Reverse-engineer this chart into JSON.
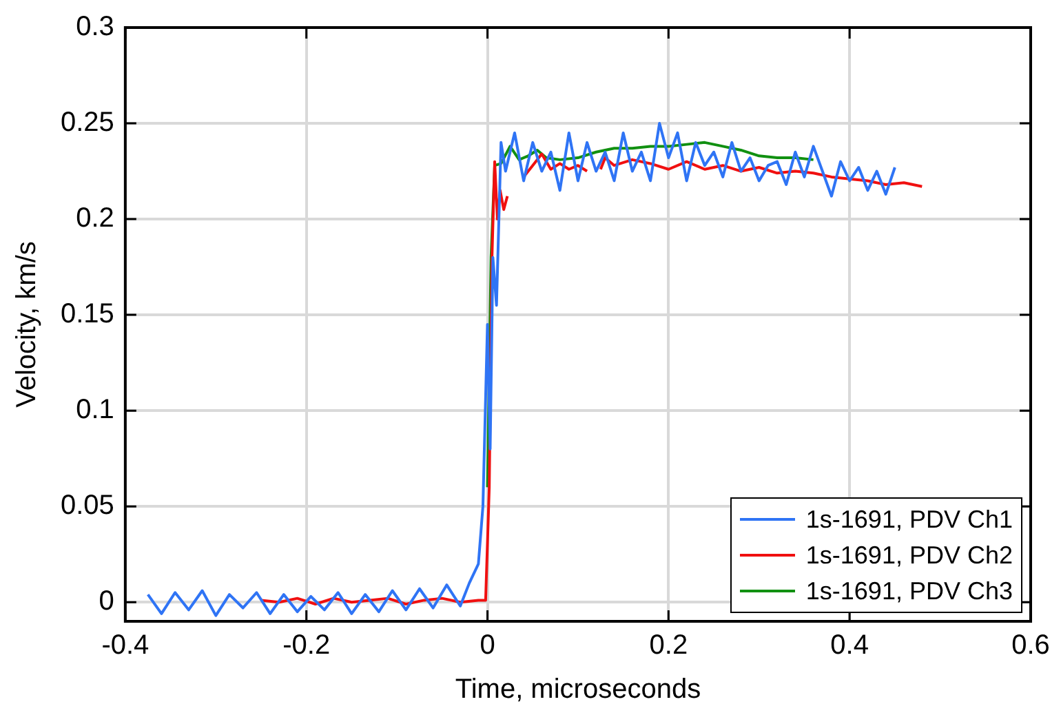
{
  "chart_data": {
    "type": "line",
    "xlabel": "Time, microseconds",
    "ylabel": "Velocity, km/s",
    "xlim": [
      -0.4,
      0.6
    ],
    "xticks": [
      -0.4,
      -0.2,
      0,
      0.2,
      0.4,
      0.6
    ],
    "ylim": [
      -0.01,
      0.3
    ],
    "yticks": [
      0,
      0.05,
      0.1,
      0.15,
      0.2,
      0.25,
      0.3
    ],
    "grid": true,
    "legend": "bottom right",
    "marker": "none",
    "line_style": "solid",
    "series": [
      {
        "name": "1s-1691, PDV Ch1",
        "color": "#2f74f5",
        "x": [
          -0.375,
          -0.36,
          -0.345,
          -0.33,
          -0.315,
          -0.3,
          -0.285,
          -0.27,
          -0.255,
          -0.24,
          -0.225,
          -0.21,
          -0.195,
          -0.18,
          -0.165,
          -0.15,
          -0.135,
          -0.12,
          -0.105,
          -0.09,
          -0.075,
          -0.06,
          -0.045,
          -0.03,
          -0.02,
          -0.01,
          -0.005,
          0,
          0.003,
          0.006,
          0.01,
          0.015,
          0.02,
          0.03,
          0.04,
          0.05,
          0.06,
          0.07,
          0.08,
          0.09,
          0.1,
          0.11,
          0.12,
          0.13,
          0.14,
          0.15,
          0.16,
          0.17,
          0.18,
          0.19,
          0.2,
          0.21,
          0.22,
          0.23,
          0.24,
          0.25,
          0.26,
          0.27,
          0.28,
          0.29,
          0.3,
          0.31,
          0.32,
          0.33,
          0.34,
          0.35,
          0.36,
          0.37,
          0.38,
          0.39,
          0.4,
          0.41,
          0.42,
          0.43,
          0.44,
          0.45
        ],
        "values": [
          0.004,
          -0.006,
          0.005,
          -0.004,
          0.006,
          -0.007,
          0.004,
          -0.003,
          0.005,
          -0.006,
          0.004,
          -0.005,
          0.003,
          -0.004,
          0.005,
          -0.006,
          0.004,
          -0.005,
          0.006,
          -0.004,
          0.007,
          -0.003,
          0.009,
          -0.002,
          0.01,
          0.02,
          0.05,
          0.145,
          0.08,
          0.18,
          0.155,
          0.24,
          0.225,
          0.245,
          0.22,
          0.24,
          0.225,
          0.235,
          0.215,
          0.245,
          0.22,
          0.24,
          0.225,
          0.235,
          0.22,
          0.245,
          0.225,
          0.235,
          0.22,
          0.25,
          0.232,
          0.245,
          0.22,
          0.24,
          0.228,
          0.235,
          0.222,
          0.24,
          0.225,
          0.232,
          0.22,
          0.228,
          0.23,
          0.218,
          0.235,
          0.222,
          0.238,
          0.225,
          0.212,
          0.23,
          0.22,
          0.227,
          0.215,
          0.225,
          0.213,
          0.227
        ]
      },
      {
        "name": "1s-1691, PDV Ch2",
        "color": "#f01010",
        "x": [
          -0.25,
          -0.23,
          -0.21,
          -0.19,
          -0.17,
          -0.15,
          -0.13,
          -0.11,
          -0.09,
          -0.07,
          -0.05,
          -0.03,
          -0.01,
          -0.002,
          0.002,
          0.005,
          0.008,
          0.011,
          0.014,
          0.018,
          0.022,
          0.03,
          0.04,
          0.05,
          0.06,
          0.07,
          0.08,
          0.09,
          0.1,
          0.11,
          0.115,
          0.125,
          0.13,
          0.14,
          0.16,
          0.18,
          0.2,
          0.22,
          0.24,
          0.26,
          0.28,
          0.3,
          0.32,
          0.34,
          0.36,
          0.38,
          0.4,
          0.42,
          0.44,
          0.46,
          0.48
        ],
        "values": [
          0.001,
          0,
          0.002,
          -0.001,
          0.002,
          0,
          0.001,
          0.002,
          -0.001,
          0.001,
          0.002,
          0,
          0.001,
          0.001,
          0.06,
          0.18,
          0.23,
          0.2,
          0.215,
          0.205,
          0.212,
          null,
          0.222,
          0.228,
          0.234,
          0.226,
          0.229,
          0.226,
          0.228,
          0.225,
          null,
          0.226,
          0.232,
          0.228,
          0.231,
          0.229,
          0.226,
          0.23,
          0.226,
          0.228,
          0.225,
          0.227,
          0.224,
          0.225,
          0.224,
          0.222,
          0.221,
          0.22,
          0.218,
          0.219,
          0.217
        ]
      },
      {
        "name": "1s-1691, PDV Ch3",
        "color": "#119011",
        "x": [
          0,
          0.004,
          0.008,
          0.015,
          0.025,
          0.035,
          0.045,
          0.055,
          0.065,
          0.08,
          0.1,
          0.12,
          0.14,
          0.16,
          0.18,
          0.2,
          0.22,
          0.24,
          0.26,
          0.28,
          0.3,
          0.32,
          0.34,
          0.36
        ],
        "values": [
          0.06,
          0.18,
          0.228,
          0.229,
          0.238,
          0.231,
          0.233,
          0.236,
          0.232,
          0.231,
          0.232,
          0.235,
          0.237,
          0.237,
          0.238,
          0.238,
          0.239,
          0.24,
          0.238,
          0.236,
          0.233,
          0.232,
          0.232,
          0.231
        ]
      }
    ]
  }
}
